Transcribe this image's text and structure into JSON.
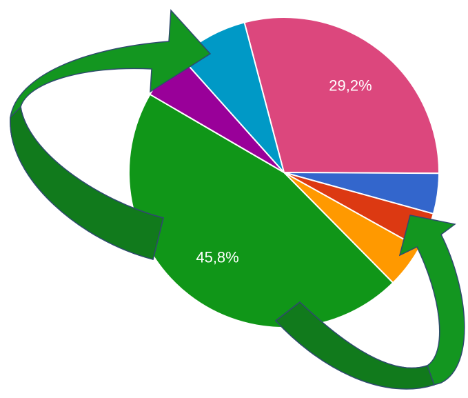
{
  "chart_data": {
    "type": "pie",
    "values": [
      29.2,
      4.2,
      3.8,
      4.5,
      45.8,
      5.0,
      7.5
    ],
    "value_labels": [
      "29,2%",
      null,
      null,
      null,
      "45,8%",
      null,
      null
    ],
    "colors": [
      "#dc477d",
      "#3366cc",
      "#dc3912",
      "#ff9900",
      "#109618",
      "#990099",
      "#0099c6"
    ]
  }
}
